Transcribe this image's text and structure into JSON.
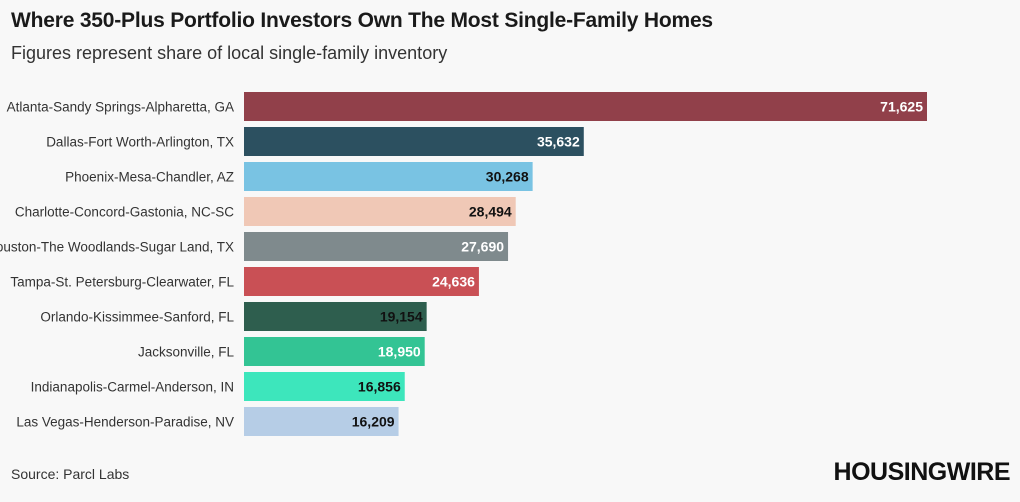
{
  "header": {
    "title": "Where 350-Plus Portfolio Investors Own The Most Single-Family Homes",
    "subtitle": "Figures represent share of local single-family inventory"
  },
  "footer": {
    "source": "Source: Parcl Labs",
    "logo": "HOUSINGWIRE"
  },
  "chart_data": {
    "type": "bar",
    "orientation": "horizontal",
    "title": "Where 350-Plus Portfolio Investors Own The Most Single-Family Homes",
    "subtitle": "Figures represent share of local single-family inventory",
    "xlabel": "",
    "ylabel": "",
    "grid": false,
    "legend": "none",
    "categories": [
      "Atlanta-Sandy Springs-Alpharetta, GA",
      "Dallas-Fort Worth-Arlington, TX",
      "Phoenix-Mesa-Chandler, AZ",
      "Charlotte-Concord-Gastonia, NC-SC",
      "Houston-The Woodlands-Sugar Land, TX",
      "Tampa-St. Petersburg-Clearwater, FL",
      "Orlando-Kissimmee-Sanford, FL",
      "Jacksonville, FL",
      "Indianapolis-Carmel-Anderson, IN",
      "Las Vegas-Henderson-Paradise, NV"
    ],
    "values": [
      71625,
      35632,
      30268,
      28494,
      27690,
      24636,
      19154,
      18950,
      16856,
      16209
    ],
    "value_labels": [
      "71,625",
      "35,632",
      "30,268",
      "28,494",
      "27,690",
      "24,636",
      "19,154",
      "18,950",
      "16,856",
      "16,209"
    ],
    "colors": [
      "#91404a",
      "#2c5060",
      "#79c3e3",
      "#f0c8b6",
      "#7f8a8d",
      "#c95055",
      "#2e5e4e",
      "#33c494",
      "#3de6bc",
      "#b6cde6"
    ],
    "label_colors": [
      "#ffffff",
      "#ffffff",
      "#111111",
      "#111111",
      "#ffffff",
      "#ffffff",
      "#111111",
      "#ffffff",
      "#111111",
      "#111111"
    ]
  }
}
